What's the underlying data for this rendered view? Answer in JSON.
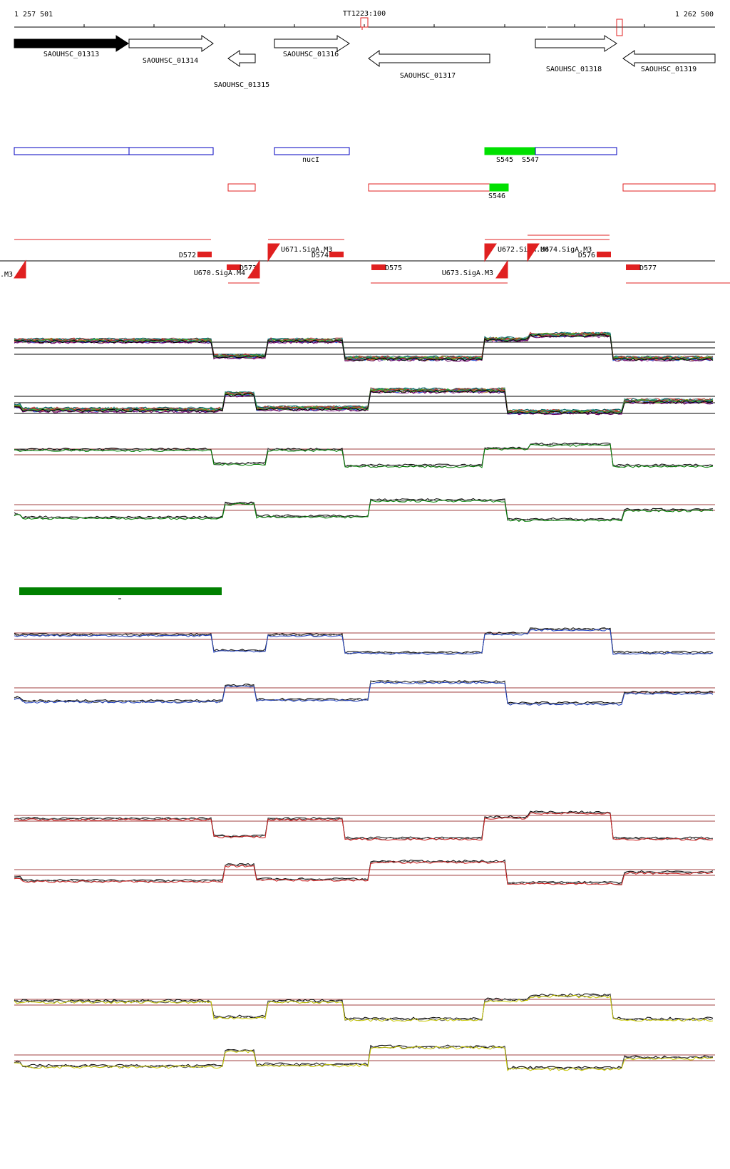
{
  "ruler": {
    "start_label": "1 257 501",
    "end_label": "1 262 500",
    "marker_label": "TT1223:100"
  },
  "genes": [
    {
      "id": "SAOUHSC_01313",
      "label": "SAOUHSC_01313"
    },
    {
      "id": "SAOUHSC_01314",
      "label": "SAOUHSC_01314"
    },
    {
      "id": "SAOUHSC_01315",
      "label": "SAOUHSC_01315"
    },
    {
      "id": "SAOUHSC_01316",
      "label": "SAOUHSC_01316"
    },
    {
      "id": "SAOUHSC_01317",
      "label": "SAOUHSC_01317"
    },
    {
      "id": "SAOUHSC_01318",
      "label": "SAOUHSC_01318"
    },
    {
      "id": "SAOUHSC_01319",
      "label": "SAOUHSC_01319"
    }
  ],
  "features": {
    "nucI": "nucI",
    "s545": "S545",
    "s547": "S547",
    "s546": "S546"
  },
  "promoters": {
    "u669": ".M3",
    "d572": "D572",
    "u670": "U670.SigA.M4",
    "d573": "D573",
    "u671": "U671.SigA.M3",
    "d574": "D574",
    "d575": "D575",
    "u673": "U673.SigA.M3",
    "u672": "U672.SigA.M4",
    "u674": "U674.SigA.M3",
    "d576": "D576",
    "d577": "D577"
  },
  "colors": {
    "gene_highlight": "#000000",
    "forward_feature": "#0000c0",
    "reverse_feature": "#e02020",
    "highlight_feature": "#00e000",
    "condition_bar": "#008000",
    "track_green": "#008000",
    "track_blue": "#2040c0",
    "track_red": "#d02020",
    "track_yellow": "#c8c800",
    "threshold": "#a04040"
  }
}
